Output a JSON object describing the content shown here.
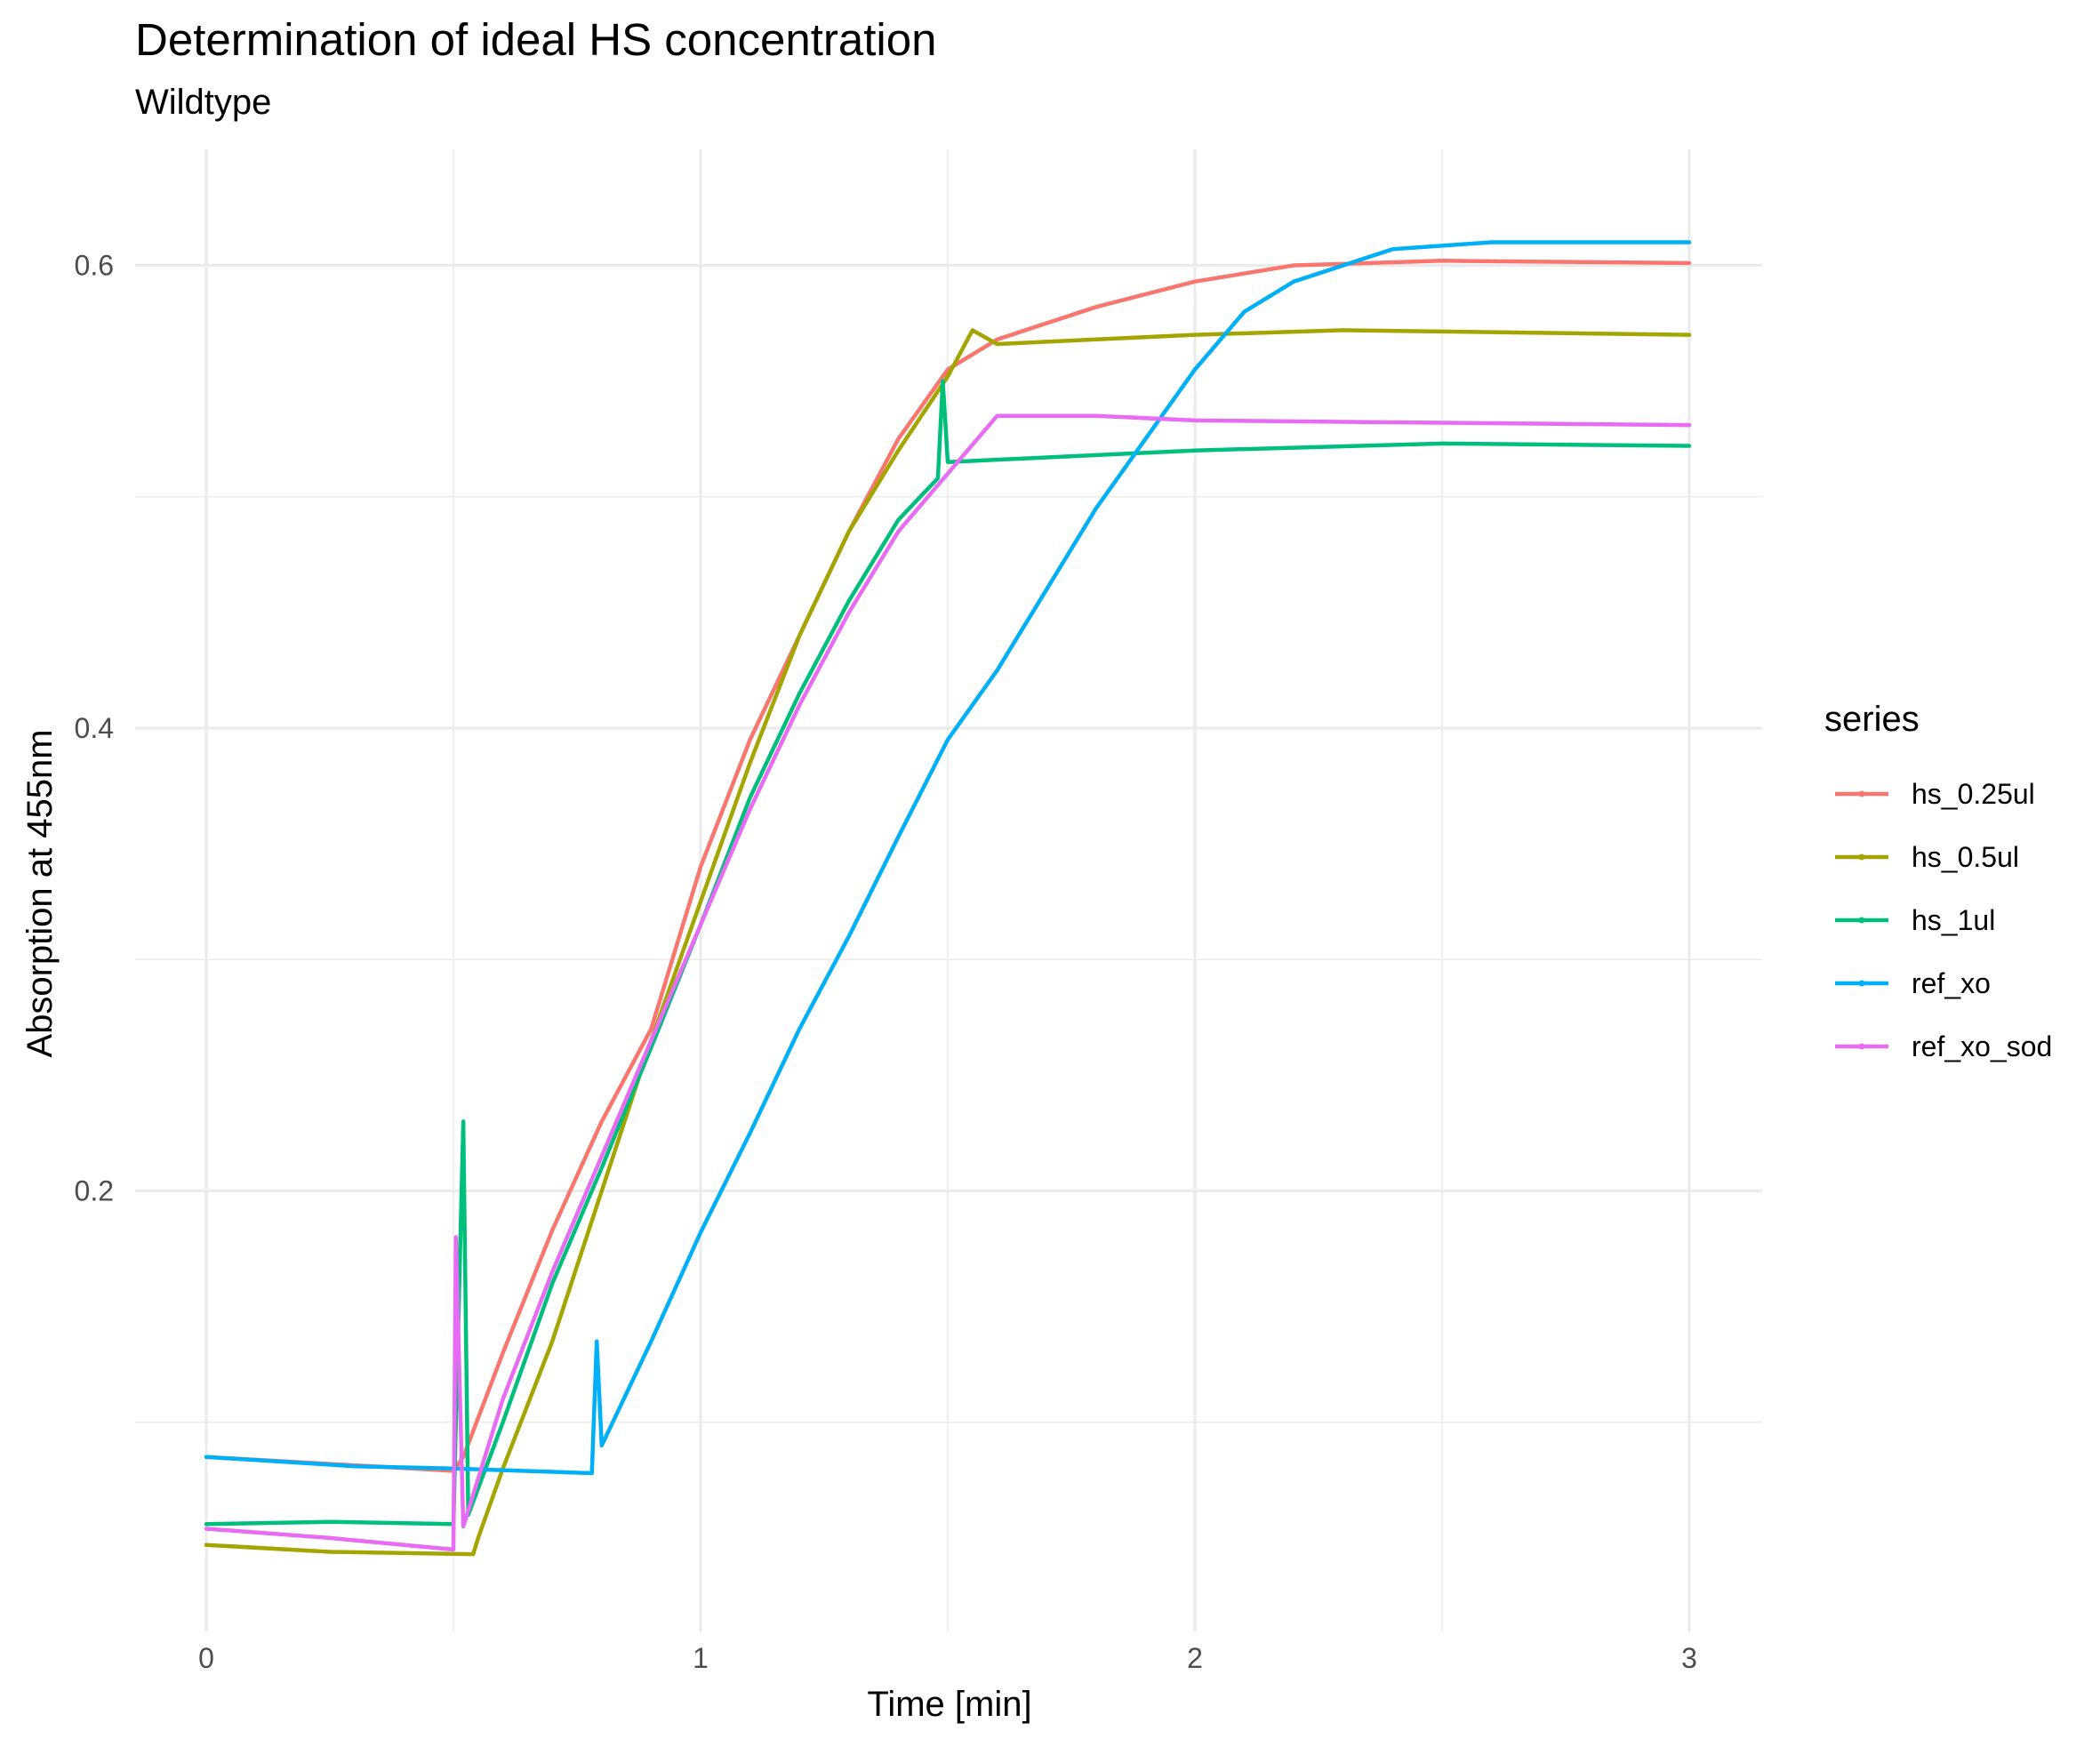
{
  "chart_data": {
    "type": "line",
    "title": "Determination of ideal HS concentration",
    "subtitle": "Wildtype",
    "xlabel": "Time [min]",
    "ylabel": "Absorption at 455nm",
    "xlim": [
      -0.05,
      3.07
    ],
    "ylim": [
      0.043,
      0.645
    ],
    "x_ticks": [
      {
        "value": 0,
        "label": "0"
      },
      {
        "value": 1,
        "label": "1"
      },
      {
        "value": 2,
        "label": "2"
      },
      {
        "value": 3,
        "label": "3"
      }
    ],
    "y_ticks": [
      {
        "value": 0.2,
        "label": "0.2"
      },
      {
        "value": 0.4,
        "label": "0.4"
      },
      {
        "value": 0.6,
        "label": "0.6"
      }
    ],
    "x_minor": [
      0.5,
      1.5,
      2.5
    ],
    "y_minor": [
      0.1,
      0.3,
      0.5
    ],
    "grid": true,
    "legend_title": "series",
    "legend_position": "right",
    "series": [
      {
        "name": "hs_0.25ul",
        "color": "#F8766D",
        "points": [
          [
            0,
            0.085
          ],
          [
            0.25,
            0.082
          ],
          [
            0.5,
            0.079
          ],
          [
            0.52,
            0.085
          ],
          [
            0.6,
            0.13
          ],
          [
            0.7,
            0.183
          ],
          [
            0.8,
            0.23
          ],
          [
            0.9,
            0.27
          ],
          [
            1.0,
            0.34
          ],
          [
            1.1,
            0.395
          ],
          [
            1.2,
            0.44
          ],
          [
            1.3,
            0.485
          ],
          [
            1.4,
            0.525
          ],
          [
            1.5,
            0.555
          ],
          [
            1.6,
            0.568
          ],
          [
            1.8,
            0.582
          ],
          [
            2.0,
            0.593
          ],
          [
            2.2,
            0.6
          ],
          [
            2.5,
            0.602
          ],
          [
            3.0,
            0.601
          ]
        ]
      },
      {
        "name": "hs_0.5ul",
        "color": "#A3A500",
        "points": [
          [
            0,
            0.047
          ],
          [
            0.25,
            0.044
          ],
          [
            0.54,
            0.043
          ],
          [
            0.55,
            0.05
          ],
          [
            0.6,
            0.08
          ],
          [
            0.7,
            0.135
          ],
          [
            0.8,
            0.2
          ],
          [
            0.9,
            0.265
          ],
          [
            1.0,
            0.325
          ],
          [
            1.1,
            0.385
          ],
          [
            1.2,
            0.44
          ],
          [
            1.3,
            0.485
          ],
          [
            1.4,
            0.52
          ],
          [
            1.5,
            0.552
          ],
          [
            1.55,
            0.572
          ],
          [
            1.6,
            0.566
          ],
          [
            1.8,
            0.568
          ],
          [
            2.0,
            0.57
          ],
          [
            2.3,
            0.572
          ],
          [
            3.0,
            0.57
          ]
        ]
      },
      {
        "name": "hs_1ul",
        "color": "#00BF7D",
        "points": [
          [
            0,
            0.056
          ],
          [
            0.25,
            0.057
          ],
          [
            0.5,
            0.056
          ],
          [
            0.52,
            0.23
          ],
          [
            0.53,
            0.06
          ],
          [
            0.6,
            0.1
          ],
          [
            0.7,
            0.16
          ],
          [
            0.8,
            0.21
          ],
          [
            0.9,
            0.262
          ],
          [
            1.0,
            0.315
          ],
          [
            1.1,
            0.37
          ],
          [
            1.2,
            0.415
          ],
          [
            1.3,
            0.455
          ],
          [
            1.4,
            0.49
          ],
          [
            1.48,
            0.508
          ],
          [
            1.49,
            0.55
          ],
          [
            1.5,
            0.515
          ],
          [
            1.8,
            0.518
          ],
          [
            2.0,
            0.52
          ],
          [
            2.5,
            0.523
          ],
          [
            3.0,
            0.522
          ]
        ]
      },
      {
        "name": "ref_xo",
        "color": "#00B0F6",
        "points": [
          [
            0,
            0.085
          ],
          [
            0.3,
            0.081
          ],
          [
            0.5,
            0.08
          ],
          [
            0.78,
            0.078
          ],
          [
            0.79,
            0.135
          ],
          [
            0.8,
            0.09
          ],
          [
            0.9,
            0.135
          ],
          [
            1.0,
            0.182
          ],
          [
            1.1,
            0.225
          ],
          [
            1.2,
            0.27
          ],
          [
            1.3,
            0.31
          ],
          [
            1.4,
            0.353
          ],
          [
            1.5,
            0.395
          ],
          [
            1.6,
            0.425
          ],
          [
            1.7,
            0.46
          ],
          [
            1.8,
            0.495
          ],
          [
            1.9,
            0.525
          ],
          [
            2.0,
            0.555
          ],
          [
            2.1,
            0.58
          ],
          [
            2.2,
            0.593
          ],
          [
            2.4,
            0.607
          ],
          [
            2.6,
            0.61
          ],
          [
            2.8,
            0.61
          ],
          [
            3.0,
            0.61
          ]
        ]
      },
      {
        "name": "ref_xo_sod",
        "color": "#E76BF3",
        "points": [
          [
            0,
            0.054
          ],
          [
            0.25,
            0.05
          ],
          [
            0.5,
            0.045
          ],
          [
            0.505,
            0.18
          ],
          [
            0.52,
            0.055
          ],
          [
            0.6,
            0.11
          ],
          [
            0.7,
            0.165
          ],
          [
            0.8,
            0.215
          ],
          [
            0.9,
            0.265
          ],
          [
            1.0,
            0.315
          ],
          [
            1.1,
            0.365
          ],
          [
            1.2,
            0.41
          ],
          [
            1.3,
            0.45
          ],
          [
            1.4,
            0.485
          ],
          [
            1.5,
            0.51
          ],
          [
            1.6,
            0.535
          ],
          [
            1.8,
            0.535
          ],
          [
            2.0,
            0.533
          ],
          [
            2.5,
            0.532
          ],
          [
            3.0,
            0.531
          ]
        ]
      }
    ]
  }
}
